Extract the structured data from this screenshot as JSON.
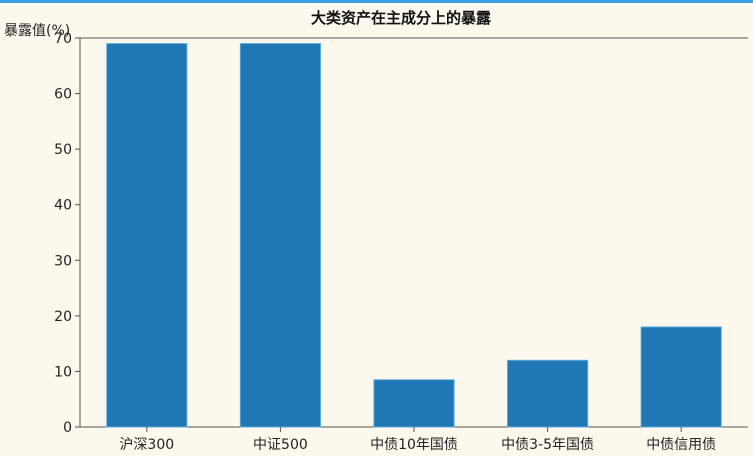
{
  "chart_data": {
    "type": "bar",
    "title": "大类资产在主成分上的暴露",
    "ylabel": "暴露值(%)",
    "xlabel": "",
    "categories": [
      "沪深300",
      "中证500",
      "中债10年国债",
      "中债3-5年国债",
      "中债信用债"
    ],
    "values": [
      69,
      69,
      8.5,
      12,
      18
    ],
    "ylim": [
      0,
      70
    ],
    "yticks": [
      0,
      10,
      20,
      30,
      40,
      50,
      60,
      70
    ],
    "bar_color": "#1f77b4",
    "background": "#fdf8ee",
    "grid": false,
    "legend": "none"
  }
}
